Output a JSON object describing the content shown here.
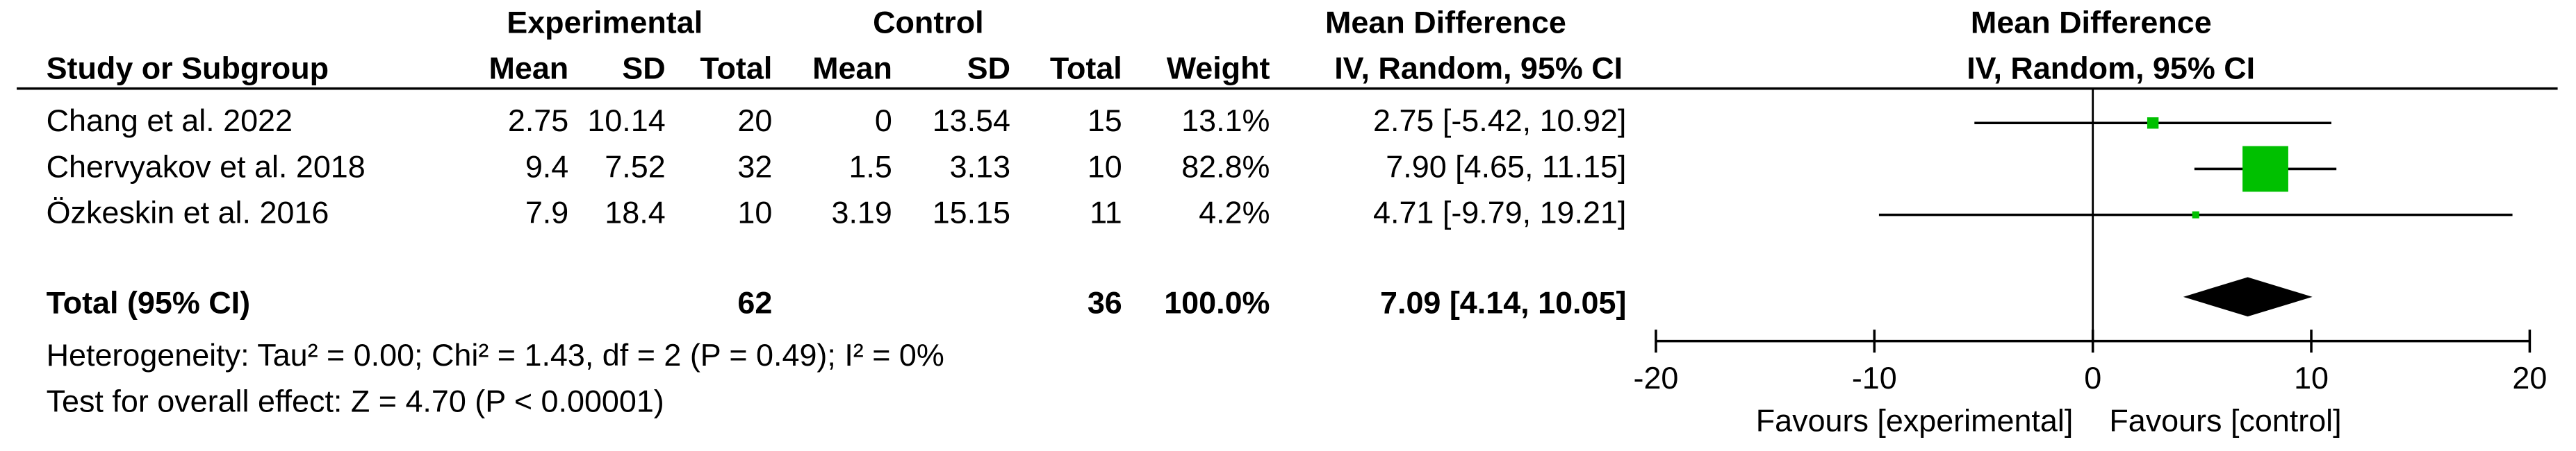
{
  "chart_data": {
    "type": "forest",
    "header": {
      "group1": "Experimental",
      "group2": "Control",
      "effect_title": "Mean Difference",
      "effect_method": "IV, Random, 95% CI",
      "plot_title": "Mean Difference",
      "plot_method": "IV, Random, 95% CI"
    },
    "columns": [
      "Study or Subgroup",
      "Mean",
      "SD",
      "Total",
      "Mean",
      "SD",
      "Total",
      "Weight"
    ],
    "studies": [
      {
        "name": "Chang et al. 2022",
        "exp_mean": 2.75,
        "exp_sd": 10.14,
        "exp_total": 20,
        "ctl_mean": 0,
        "ctl_sd": 13.54,
        "ctl_total": 15,
        "weight": 13.1,
        "weight_label": "13.1%",
        "md": 2.75,
        "ci": [
          -5.42,
          10.92
        ],
        "ci_label": "2.75 [-5.42, 10.92]"
      },
      {
        "name": "Chervyakov et al. 2018",
        "exp_mean": 9.4,
        "exp_sd": 7.52,
        "exp_total": 32,
        "ctl_mean": 1.5,
        "ctl_sd": 3.13,
        "ctl_total": 10,
        "weight": 82.8,
        "weight_label": "82.8%",
        "md": 7.9,
        "ci": [
          4.65,
          11.15
        ],
        "ci_label": "7.90 [4.65, 11.15]"
      },
      {
        "name": "Özkeskin et al. 2016",
        "exp_mean": 7.9,
        "exp_sd": 18.4,
        "exp_total": 10,
        "ctl_mean": 3.19,
        "ctl_sd": 15.15,
        "ctl_total": 11,
        "weight": 4.2,
        "weight_label": "4.2%",
        "md": 4.71,
        "ci": [
          -9.79,
          19.21
        ],
        "ci_label": "4.71 [-9.79, 19.21]"
      }
    ],
    "total": {
      "name": "Total (95% CI)",
      "exp_total": 62,
      "ctl_total": 36,
      "weight": 100,
      "weight_label": "100.0%",
      "md": 7.09,
      "ci": [
        4.14,
        10.05
      ],
      "ci_label": "7.09 [4.14, 10.05]"
    },
    "heterogeneity": "Heterogeneity: Tau² = 0.00; Chi² = 1.43, df = 2 (P = 0.49); I² = 0%",
    "overall_effect": "Test for overall effect: Z = 4.70 (P < 0.00001)",
    "xlim": [
      -20,
      20
    ],
    "xticks": [
      -20,
      -10,
      0,
      10,
      20
    ],
    "favours_left": "Favours [experimental]",
    "favours_right": "Favours [control]",
    "marker_color": "#00c000"
  }
}
